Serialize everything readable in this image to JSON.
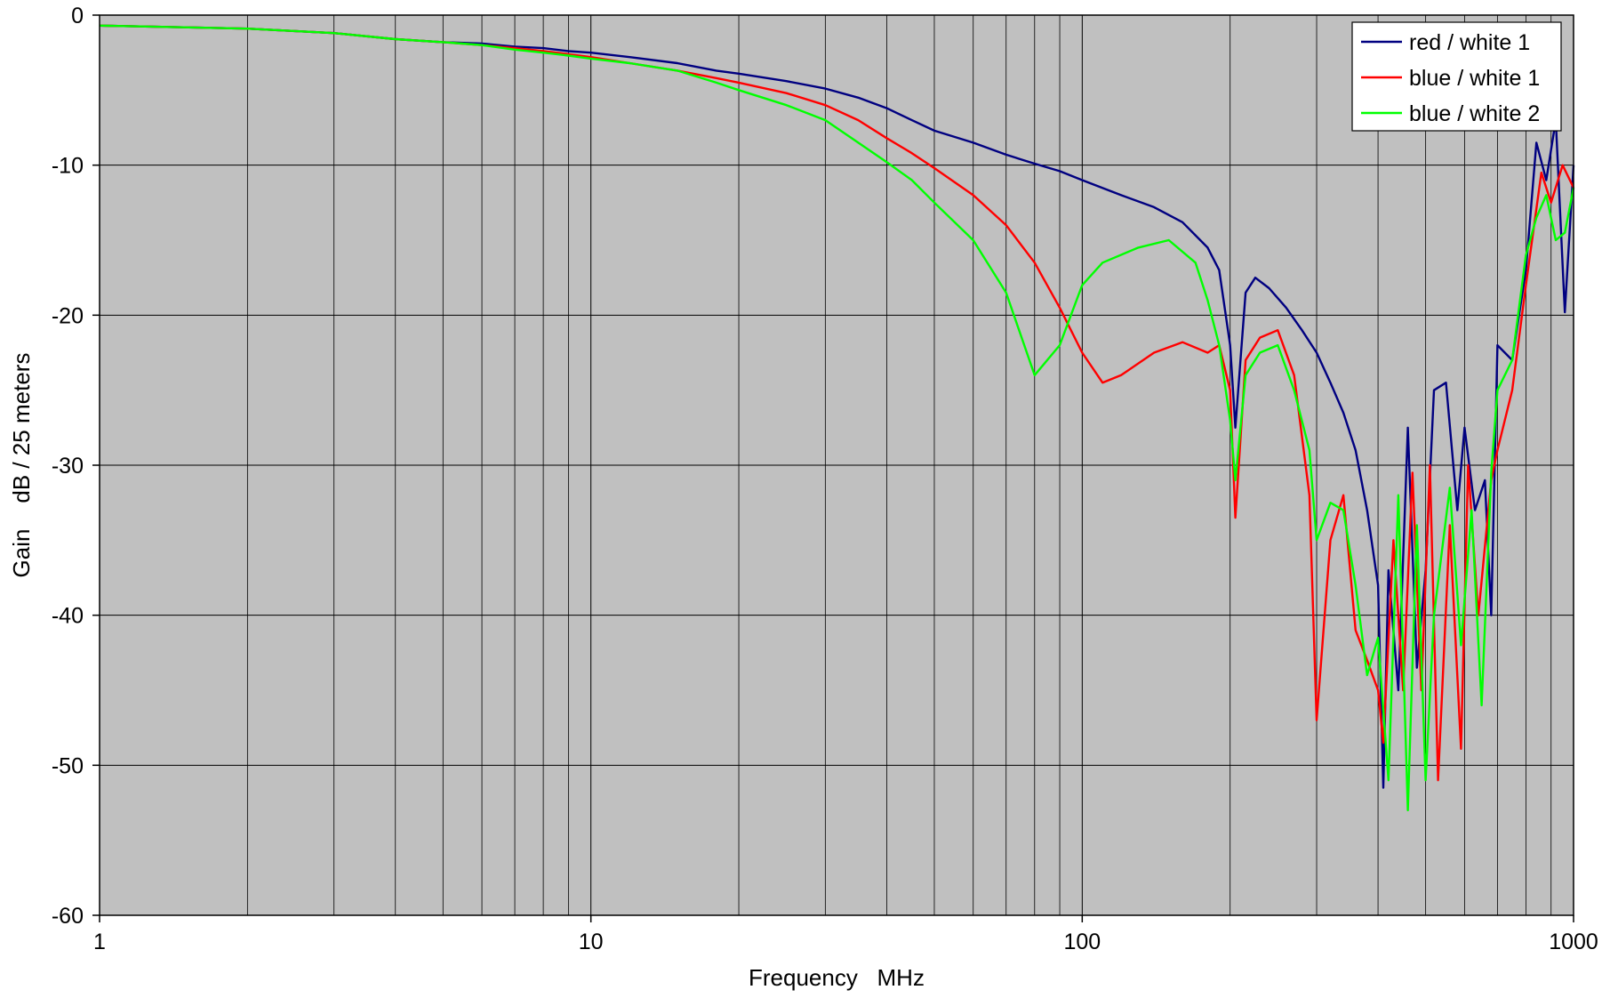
{
  "chart_data": {
    "type": "line",
    "title": "",
    "xlabel": "Frequency   MHz",
    "ylabel": "Gain    dB / 25 meters",
    "x_scale": "log",
    "xlim": [
      1,
      1000
    ],
    "ylim": [
      -60,
      0
    ],
    "x_ticks": [
      1,
      10,
      100,
      1000
    ],
    "x_tick_labels": [
      "1",
      "10",
      "100",
      "1000"
    ],
    "y_ticks": [
      0,
      -10,
      -20,
      -30,
      -40,
      -50,
      -60
    ],
    "y_tick_labels": [
      "0",
      "-10",
      "-20",
      "-30",
      "-40",
      "-50",
      "-60"
    ],
    "grid": true,
    "legend_position": "top-right",
    "plot_background": "#c0c0c0",
    "series": [
      {
        "name": "red / white 1",
        "color": "#000080",
        "points": [
          [
            1,
            -0.7
          ],
          [
            2,
            -0.9
          ],
          [
            3,
            -1.2
          ],
          [
            4,
            -1.6
          ],
          [
            5,
            -1.8
          ],
          [
            6,
            -1.9
          ],
          [
            7,
            -2.1
          ],
          [
            8,
            -2.2
          ],
          [
            9,
            -2.4
          ],
          [
            10,
            -2.5
          ],
          [
            12,
            -2.8
          ],
          [
            15,
            -3.2
          ],
          [
            18,
            -3.7
          ],
          [
            20,
            -3.9
          ],
          [
            25,
            -4.4
          ],
          [
            30,
            -4.9
          ],
          [
            35,
            -5.5
          ],
          [
            40,
            -6.2
          ],
          [
            45,
            -7.0
          ],
          [
            50,
            -7.7
          ],
          [
            60,
            -8.5
          ],
          [
            70,
            -9.3
          ],
          [
            80,
            -9.9
          ],
          [
            90,
            -10.4
          ],
          [
            100,
            -11.0
          ],
          [
            120,
            -12.0
          ],
          [
            140,
            -12.8
          ],
          [
            160,
            -13.8
          ],
          [
            180,
            -15.5
          ],
          [
            190,
            -17.0
          ],
          [
            200,
            -22.0
          ],
          [
            205,
            -27.5
          ],
          [
            215,
            -18.5
          ],
          [
            225,
            -17.5
          ],
          [
            240,
            -18.2
          ],
          [
            260,
            -19.5
          ],
          [
            280,
            -21.0
          ],
          [
            300,
            -22.5
          ],
          [
            320,
            -24.5
          ],
          [
            340,
            -26.5
          ],
          [
            360,
            -29.0
          ],
          [
            380,
            -33.0
          ],
          [
            400,
            -38.0
          ],
          [
            410,
            -51.5
          ],
          [
            420,
            -37.0
          ],
          [
            440,
            -45.0
          ],
          [
            460,
            -27.5
          ],
          [
            480,
            -43.5
          ],
          [
            500,
            -37.0
          ],
          [
            520,
            -25.0
          ],
          [
            550,
            -24.5
          ],
          [
            580,
            -33.0
          ],
          [
            600,
            -27.5
          ],
          [
            630,
            -33.0
          ],
          [
            660,
            -31.0
          ],
          [
            680,
            -40.0
          ],
          [
            700,
            -22.0
          ],
          [
            750,
            -23.0
          ],
          [
            800,
            -17.0
          ],
          [
            840,
            -8.5
          ],
          [
            880,
            -11.0
          ],
          [
            920,
            -7.0
          ],
          [
            960,
            -19.8
          ],
          [
            1000,
            -10.0
          ]
        ]
      },
      {
        "name": "blue / white 1",
        "color": "#ff0000",
        "points": [
          [
            1,
            -0.7
          ],
          [
            2,
            -0.9
          ],
          [
            3,
            -1.2
          ],
          [
            4,
            -1.6
          ],
          [
            5,
            -1.8
          ],
          [
            6,
            -2.0
          ],
          [
            7,
            -2.2
          ],
          [
            8,
            -2.4
          ],
          [
            9,
            -2.6
          ],
          [
            10,
            -2.8
          ],
          [
            12,
            -3.2
          ],
          [
            15,
            -3.7
          ],
          [
            18,
            -4.2
          ],
          [
            20,
            -4.5
          ],
          [
            25,
            -5.2
          ],
          [
            30,
            -6.0
          ],
          [
            35,
            -7.0
          ],
          [
            40,
            -8.2
          ],
          [
            45,
            -9.2
          ],
          [
            50,
            -10.2
          ],
          [
            60,
            -12.0
          ],
          [
            70,
            -14.0
          ],
          [
            80,
            -16.5
          ],
          [
            90,
            -19.5
          ],
          [
            100,
            -22.5
          ],
          [
            110,
            -24.5
          ],
          [
            120,
            -24.0
          ],
          [
            140,
            -22.5
          ],
          [
            160,
            -21.8
          ],
          [
            180,
            -22.5
          ],
          [
            190,
            -22.0
          ],
          [
            200,
            -25.0
          ],
          [
            205,
            -33.5
          ],
          [
            215,
            -23.0
          ],
          [
            230,
            -21.5
          ],
          [
            250,
            -21.0
          ],
          [
            270,
            -24.0
          ],
          [
            290,
            -32.0
          ],
          [
            300,
            -47.0
          ],
          [
            320,
            -35.0
          ],
          [
            340,
            -32.0
          ],
          [
            360,
            -41.0
          ],
          [
            380,
            -43.0
          ],
          [
            400,
            -45.0
          ],
          [
            410,
            -48.5
          ],
          [
            430,
            -35.0
          ],
          [
            450,
            -45.0
          ],
          [
            470,
            -30.5
          ],
          [
            490,
            -45.0
          ],
          [
            510,
            -30.0
          ],
          [
            530,
            -51.0
          ],
          [
            560,
            -34.0
          ],
          [
            590,
            -48.9
          ],
          [
            610,
            -30.0
          ],
          [
            640,
            -40.0
          ],
          [
            680,
            -31.0
          ],
          [
            700,
            -29.0
          ],
          [
            750,
            -25.0
          ],
          [
            800,
            -18.0
          ],
          [
            860,
            -10.5
          ],
          [
            900,
            -12.5
          ],
          [
            950,
            -10.0
          ],
          [
            1000,
            -11.5
          ]
        ]
      },
      {
        "name": "blue / white 2",
        "color": "#00ff00",
        "points": [
          [
            1,
            -0.7
          ],
          [
            2,
            -0.9
          ],
          [
            3,
            -1.2
          ],
          [
            4,
            -1.6
          ],
          [
            5,
            -1.8
          ],
          [
            6,
            -2.0
          ],
          [
            7,
            -2.3
          ],
          [
            8,
            -2.5
          ],
          [
            9,
            -2.7
          ],
          [
            10,
            -2.9
          ],
          [
            12,
            -3.2
          ],
          [
            15,
            -3.7
          ],
          [
            18,
            -4.5
          ],
          [
            20,
            -5.0
          ],
          [
            25,
            -6.0
          ],
          [
            30,
            -7.0
          ],
          [
            35,
            -8.5
          ],
          [
            40,
            -9.8
          ],
          [
            45,
            -11.0
          ],
          [
            50,
            -12.5
          ],
          [
            60,
            -15.0
          ],
          [
            70,
            -18.5
          ],
          [
            80,
            -24.0
          ],
          [
            90,
            -22.0
          ],
          [
            100,
            -18.0
          ],
          [
            110,
            -16.5
          ],
          [
            130,
            -15.5
          ],
          [
            150,
            -15.0
          ],
          [
            170,
            -16.5
          ],
          [
            180,
            -19.0
          ],
          [
            190,
            -22.0
          ],
          [
            200,
            -27.0
          ],
          [
            205,
            -31.0
          ],
          [
            215,
            -24.0
          ],
          [
            230,
            -22.5
          ],
          [
            250,
            -22.0
          ],
          [
            270,
            -25.0
          ],
          [
            290,
            -29.0
          ],
          [
            300,
            -35.0
          ],
          [
            320,
            -32.5
          ],
          [
            340,
            -33.0
          ],
          [
            360,
            -38.0
          ],
          [
            380,
            -44.0
          ],
          [
            400,
            -41.5
          ],
          [
            420,
            -51.0
          ],
          [
            440,
            -32.0
          ],
          [
            460,
            -53.0
          ],
          [
            480,
            -34.0
          ],
          [
            500,
            -51.0
          ],
          [
            520,
            -40.0
          ],
          [
            560,
            -31.5
          ],
          [
            590,
            -42.0
          ],
          [
            620,
            -33.0
          ],
          [
            650,
            -46.0
          ],
          [
            680,
            -30.5
          ],
          [
            700,
            -25.0
          ],
          [
            750,
            -23.0
          ],
          [
            800,
            -16.0
          ],
          [
            840,
            -13.5
          ],
          [
            880,
            -12.0
          ],
          [
            920,
            -15.0
          ],
          [
            960,
            -14.5
          ],
          [
            1000,
            -11.5
          ]
        ]
      }
    ]
  }
}
